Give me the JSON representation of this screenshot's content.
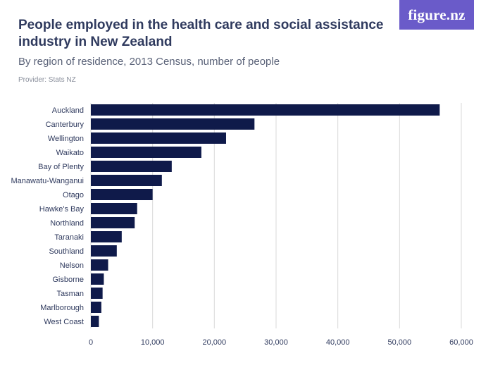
{
  "header": {
    "title": "People employed in the health care and social assistance industry in New Zealand",
    "subtitle": "By region of residence, 2013 Census, number of people",
    "provider": "Provider: Stats NZ",
    "logo_text": "figure.nz"
  },
  "colors": {
    "bar": "#0f1a4a",
    "grid": "#d9d9d9",
    "logo_bg": "#6a5bc9",
    "title": "#2f3a5e"
  },
  "chart_data": {
    "type": "bar",
    "orientation": "horizontal",
    "title": "People employed in the health care and social assistance industry in New Zealand",
    "subtitle": "By region of residence, 2013 Census, number of people",
    "categories": [
      "Auckland",
      "Canterbury",
      "Wellington",
      "Waikato",
      "Bay of Plenty",
      "Manawatu-Wanganui",
      "Otago",
      "Hawke's Bay",
      "Northland",
      "Taranaki",
      "Southland",
      "Nelson",
      "Gisborne",
      "Tasman",
      "Marlborough",
      "West Coast"
    ],
    "values": [
      56500,
      26500,
      21900,
      17900,
      13100,
      11500,
      10000,
      7500,
      7100,
      5000,
      4200,
      2800,
      2100,
      1900,
      1700,
      1300
    ],
    "xlim": [
      0,
      60000
    ],
    "xticks": [
      0,
      10000,
      20000,
      30000,
      40000,
      50000,
      60000
    ],
    "xtick_labels": [
      "0",
      "10,000",
      "20,000",
      "30,000",
      "40,000",
      "50,000",
      "60,000"
    ],
    "grid": true
  }
}
